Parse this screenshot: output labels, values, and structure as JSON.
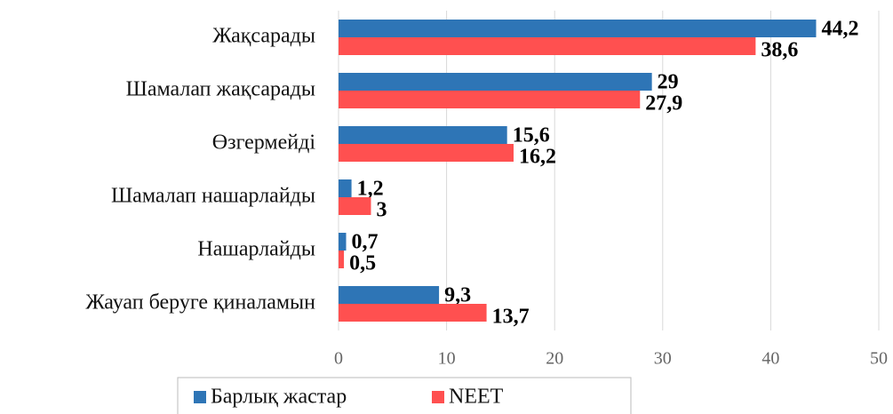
{
  "chart_data": {
    "type": "hbar",
    "categories": [
      "Жақсарады",
      "Шамалап жақсарады",
      "Өзгермейді",
      "Шамалап нашарлайды",
      "Нашарлайды",
      "Жауап беруге қиналамын"
    ],
    "series": [
      {
        "name": "Барлық жастар",
        "color": "#2e75b6",
        "values": [
          44.2,
          29,
          15.6,
          1.2,
          0.7,
          9.3
        ],
        "value_labels": [
          "44,2",
          "29",
          "15,6",
          "1,2",
          "0,7",
          "9,3"
        ]
      },
      {
        "name": "NEET",
        "color": "#ff5050",
        "values": [
          38.6,
          27.9,
          16.2,
          3,
          0.5,
          13.7
        ],
        "value_labels": [
          "38,6",
          "27,9",
          "16,2",
          "3",
          "0,5",
          "13,7"
        ]
      }
    ],
    "xlim": [
      0,
      50
    ],
    "xticks": [
      0,
      10,
      20,
      30,
      40,
      50
    ],
    "grid": true,
    "legend": "bottom"
  }
}
